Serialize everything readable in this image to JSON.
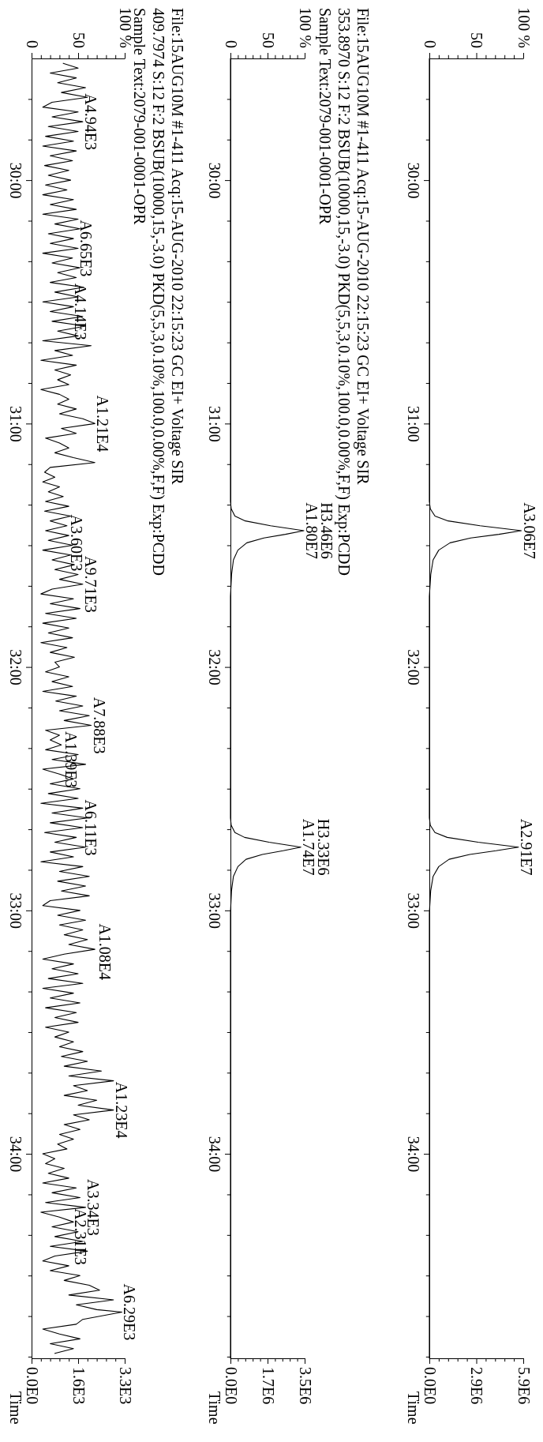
{
  "chart_data": [
    {
      "type": "line",
      "ylabel": "Time",
      "values": [
        29.5,
        31.32,
        31.35,
        31.38,
        31.4,
        31.42,
        31.44,
        31.455,
        31.47,
        31.49,
        31.52,
        31.56,
        31.62,
        31.71,
        32.62,
        32.65,
        32.68,
        32.7,
        32.72,
        32.74,
        32.755,
        32.77,
        32.79,
        32.82,
        32.86,
        32.92,
        33.01,
        34.84
      ],
      "x": [
        0,
        0,
        1,
        6,
        20,
        54,
        98,
        74,
        44,
        22,
        10,
        4,
        1.5,
        0,
        0,
        1,
        6,
        19,
        52,
        95,
        71,
        43,
        21,
        10,
        4,
        1.4,
        0,
        0
      ],
      "color": "#000000",
      "annotations": [
        {
          "text": "A3.06E7",
          "x": 98,
          "y": 31.44
        },
        {
          "text": "A2.91E7",
          "x": 95,
          "y": 32.74
        }
      ],
      "ylim": [
        34.84,
        29.5
      ],
      "yticks": [
        {
          "value": 29.6667,
          "label": null
        },
        {
          "value": 29.8333,
          "label": null
        },
        {
          "value": 30,
          "label": "30:00"
        },
        {
          "value": 30.1667,
          "label": null
        },
        {
          "value": 30.3333,
          "label": null
        },
        {
          "value": 30.5,
          "label": null
        },
        {
          "value": 30.6667,
          "label": null
        },
        {
          "value": 30.8333,
          "label": null
        },
        {
          "value": 31,
          "label": "31:00"
        },
        {
          "value": 31.1667,
          "label": null
        },
        {
          "value": 31.3333,
          "label": null
        },
        {
          "value": 31.5,
          "label": null
        },
        {
          "value": 31.6667,
          "label": null
        },
        {
          "value": 31.8333,
          "label": null
        },
        {
          "value": 32,
          "label": "32:00"
        },
        {
          "value": 32.1667,
          "label": null
        },
        {
          "value": 32.3333,
          "label": null
        },
        {
          "value": 32.5,
          "label": null
        },
        {
          "value": 32.6667,
          "label": null
        },
        {
          "value": 32.8333,
          "label": null
        },
        {
          "value": 33,
          "label": "33:00"
        },
        {
          "value": 33.1667,
          "label": null
        },
        {
          "value": 33.3333,
          "label": null
        },
        {
          "value": 33.5,
          "label": null
        },
        {
          "value": 33.6667,
          "label": null
        },
        {
          "value": 33.8333,
          "label": null
        },
        {
          "value": 34,
          "label": "34:00"
        },
        {
          "value": 34.1667,
          "label": null
        },
        {
          "value": 34.3333,
          "label": null
        },
        {
          "value": 34.5,
          "label": null
        },
        {
          "value": 34.6667,
          "label": null
        },
        {
          "value": 34.8333,
          "label": null
        }
      ],
      "xlim": [
        0,
        100
      ],
      "xticks": [
        {
          "value": 0,
          "label": "0"
        },
        {
          "value": 10,
          "label": null
        },
        {
          "value": 20,
          "label": null
        },
        {
          "value": 30,
          "label": null
        },
        {
          "value": 40,
          "label": null
        },
        {
          "value": 50,
          "label": "50"
        },
        {
          "value": 60,
          "label": null
        },
        {
          "value": 70,
          "label": null
        },
        {
          "value": 80,
          "label": null
        },
        {
          "value": 90,
          "label": null
        },
        {
          "value": 100,
          "label": "100 %"
        }
      ],
      "x2lim": [
        0,
        5900000
      ],
      "x2ticks": [
        {
          "value": 0,
          "label": "0.0E0"
        },
        {
          "value": 590000,
          "label": null
        },
        {
          "value": 1180000,
          "label": null
        },
        {
          "value": 1770000,
          "label": null
        },
        {
          "value": 2360000,
          "label": null
        },
        {
          "value": 2950000,
          "label": "2.9E6"
        },
        {
          "value": 3540000,
          "label": null
        },
        {
          "value": 4130000,
          "label": null
        },
        {
          "value": 4720000,
          "label": null
        },
        {
          "value": 5310000,
          "label": null
        },
        {
          "value": 5900000,
          "label": "5.9E6"
        }
      ]
    },
    {
      "type": "line",
      "ylabel": "Time",
      "values": [
        29.5,
        31.32,
        31.35,
        31.38,
        31.4,
        31.42,
        31.44,
        31.455,
        31.47,
        31.49,
        31.52,
        31.56,
        31.62,
        31.71,
        32.62,
        32.65,
        32.68,
        32.7,
        32.72,
        32.74,
        32.755,
        32.77,
        32.79,
        32.82,
        32.86,
        32.92,
        33.01,
        34.84
      ],
      "x": [
        0,
        0,
        1,
        6,
        20,
        54,
        99,
        74,
        45,
        22,
        10,
        4,
        1.5,
        0,
        0,
        1,
        6,
        19,
        52,
        95,
        71,
        43,
        21,
        10,
        4,
        1.4,
        0,
        0
      ],
      "color": "#000000",
      "annotations": [
        "File:15AUG10M #1-411 Acq:15-AUG-2010 22:15:23 GC EI+ Voltage SIR",
        "353.8970 S:12 F:2 BSUB(10000,15,-3.0) PKD(5,5,3,0.10%,100.0,0.00%,F,F)  Exp:PCDD",
        "Sample Text:2079-001-0001-OPR",
        {
          "text": "H3.46E6",
          "x": 99,
          "y": 31.44
        },
        {
          "text": "A1.80E7",
          "x": 99,
          "y": 31.44
        },
        {
          "text": "H3.33E6",
          "x": 95,
          "y": 32.74
        },
        {
          "text": "A1.74E7",
          "x": 95,
          "y": 32.74
        }
      ],
      "ylim": [
        34.84,
        29.5
      ],
      "yticks": [
        {
          "value": 29.6667,
          "label": null
        },
        {
          "value": 29.8333,
          "label": null
        },
        {
          "value": 30,
          "label": "30:00"
        },
        {
          "value": 30.1667,
          "label": null
        },
        {
          "value": 30.3333,
          "label": null
        },
        {
          "value": 30.5,
          "label": null
        },
        {
          "value": 30.6667,
          "label": null
        },
        {
          "value": 30.8333,
          "label": null
        },
        {
          "value": 31,
          "label": "31:00"
        },
        {
          "value": 31.1667,
          "label": null
        },
        {
          "value": 31.3333,
          "label": null
        },
        {
          "value": 31.5,
          "label": null
        },
        {
          "value": 31.6667,
          "label": null
        },
        {
          "value": 31.8333,
          "label": null
        },
        {
          "value": 32,
          "label": "32:00"
        },
        {
          "value": 32.1667,
          "label": null
        },
        {
          "value": 32.3333,
          "label": null
        },
        {
          "value": 32.5,
          "label": null
        },
        {
          "value": 32.6667,
          "label": null
        },
        {
          "value": 32.8333,
          "label": null
        },
        {
          "value": 33,
          "label": "33:00"
        },
        {
          "value": 33.1667,
          "label": null
        },
        {
          "value": 33.3333,
          "label": null
        },
        {
          "value": 33.5,
          "label": null
        },
        {
          "value": 33.6667,
          "label": null
        },
        {
          "value": 33.8333,
          "label": null
        },
        {
          "value": 34,
          "label": "34:00"
        },
        {
          "value": 34.1667,
          "label": null
        },
        {
          "value": 34.3333,
          "label": null
        },
        {
          "value": 34.5,
          "label": null
        },
        {
          "value": 34.6667,
          "label": null
        },
        {
          "value": 34.8333,
          "label": null
        }
      ],
      "xlim": [
        0,
        100
      ],
      "xticks": [
        {
          "value": 0,
          "label": "0"
        },
        {
          "value": 10,
          "label": null
        },
        {
          "value": 20,
          "label": null
        },
        {
          "value": 30,
          "label": null
        },
        {
          "value": 40,
          "label": null
        },
        {
          "value": 50,
          "label": "50"
        },
        {
          "value": 60,
          "label": null
        },
        {
          "value": 70,
          "label": null
        },
        {
          "value": 80,
          "label": null
        },
        {
          "value": 90,
          "label": null
        },
        {
          "value": 100,
          "label": "100 %"
        }
      ],
      "x2lim": [
        0,
        3500000
      ],
      "x2ticks": [
        {
          "value": 0,
          "label": "0.0E0"
        },
        {
          "value": 350000,
          "label": null
        },
        {
          "value": 700000,
          "label": null
        },
        {
          "value": 1050000,
          "label": null
        },
        {
          "value": 1400000,
          "label": null
        },
        {
          "value": 1750000,
          "label": "1.7E6"
        },
        {
          "value": 2100000,
          "label": null
        },
        {
          "value": 2450000,
          "label": null
        },
        {
          "value": 2800000,
          "label": null
        },
        {
          "value": 3150000,
          "label": null
        },
        {
          "value": 3500000,
          "label": "3.5E6"
        }
      ]
    },
    {
      "type": "line",
      "ylabel": "Time",
      "values": [
        29.52,
        29.54,
        29.56,
        29.58,
        29.6,
        29.62,
        29.64,
        29.66,
        29.68,
        29.7,
        29.72,
        29.74,
        29.76,
        29.78,
        29.8,
        29.82,
        29.84,
        29.86,
        29.88,
        29.9,
        29.92,
        29.94,
        29.96,
        29.98,
        30,
        30.02,
        30.04,
        30.06,
        30.08,
        30.1,
        30.12,
        30.14,
        30.16,
        30.18,
        30.2,
        30.22,
        30.24,
        30.26,
        30.28,
        30.3,
        30.32,
        30.34,
        30.36,
        30.38,
        30.4,
        30.42,
        30.44,
        30.46,
        30.48,
        30.5,
        30.52,
        30.54,
        30.56,
        30.58,
        30.6,
        30.62,
        30.64,
        30.66,
        30.68,
        30.7,
        30.72,
        30.74,
        30.76,
        30.78,
        30.8,
        30.82,
        30.84,
        30.86,
        30.88,
        30.9,
        30.92,
        30.94,
        30.96,
        30.98,
        31,
        31.02,
        31.04,
        31.06,
        31.08,
        31.1,
        31.12,
        31.14,
        31.16,
        31.18,
        31.2,
        31.22,
        31.24,
        31.26,
        31.28,
        31.3,
        31.32,
        31.34,
        31.36,
        31.38,
        31.4,
        31.42,
        31.44,
        31.46,
        31.48,
        31.5,
        31.52,
        31.54,
        31.56,
        31.58,
        31.6,
        31.62,
        31.64,
        31.66,
        31.68,
        31.7,
        31.72,
        31.74,
        31.76,
        31.78,
        31.8,
        31.82,
        31.84,
        31.86,
        31.88,
        31.9,
        31.92,
        31.94,
        31.96,
        31.98,
        32,
        32.02,
        32.04,
        32.06,
        32.08,
        32.1,
        32.12,
        32.14,
        32.16,
        32.18,
        32.2,
        32.22,
        32.24,
        32.26,
        32.28,
        32.3,
        32.32,
        32.34,
        32.36,
        32.38,
        32.4,
        32.42,
        32.44,
        32.46,
        32.48,
        32.5,
        32.52,
        32.54,
        32.56,
        32.58,
        32.6,
        32.62,
        32.64,
        32.66,
        32.68,
        32.7,
        32.72,
        32.74,
        32.76,
        32.78,
        32.8,
        32.82,
        32.84,
        32.86,
        32.88,
        32.9,
        32.92,
        32.94,
        32.96,
        32.98,
        33,
        33.02,
        33.04,
        33.06,
        33.08,
        33.1,
        33.12,
        33.14,
        33.16,
        33.18,
        33.2,
        33.22,
        33.24,
        33.26,
        33.28,
        33.3,
        33.32,
        33.34,
        33.36,
        33.38,
        33.4,
        33.42,
        33.44,
        33.46,
        33.48,
        33.5,
        33.52,
        33.54,
        33.56,
        33.58,
        33.6,
        33.62,
        33.64,
        33.66,
        33.68,
        33.7,
        33.72,
        33.74,
        33.76,
        33.78,
        33.8,
        33.82,
        33.84,
        33.86,
        33.88,
        33.9,
        33.92,
        33.94,
        33.96,
        33.98,
        34,
        34.02,
        34.04,
        34.06,
        34.08,
        34.1,
        34.12,
        34.14,
        34.16,
        34.18,
        34.2,
        34.22,
        34.24,
        34.26,
        34.28,
        34.3,
        34.32,
        34.34,
        34.36,
        34.38,
        34.4,
        34.42,
        34.44,
        34.46,
        34.48,
        34.5,
        34.52,
        34.54,
        34.56,
        34.58,
        34.6,
        34.62,
        34.64,
        34.65,
        34.68,
        34.7,
        34.72,
        34.74,
        34.76,
        34.78,
        34.8,
        34.82
      ],
      "x": [
        34,
        50,
        20,
        48,
        28,
        58,
        32,
        60,
        22,
        12,
        50,
        22,
        55,
        18,
        50,
        15,
        45,
        12,
        48,
        20,
        44,
        14,
        40,
        18,
        42,
        15,
        38,
        12,
        45,
        20,
        48,
        12,
        50,
        25,
        52,
        18,
        45,
        20,
        50,
        12,
        44,
        22,
        52,
        28,
        48,
        20,
        56,
        25,
        50,
        12,
        45,
        20,
        55,
        22,
        58,
        28,
        50,
        12,
        64,
        25,
        44,
        10,
        48,
        25,
        42,
        28,
        40,
        10,
        30,
        40,
        28,
        48,
        30,
        55,
        68,
        32,
        48,
        15,
        30,
        40,
        25,
        45,
        68,
        20,
        14,
        25,
        12,
        30,
        18,
        34,
        15,
        40,
        14,
        42,
        20,
        38,
        15,
        40,
        18,
        44,
        12,
        42,
        22,
        46,
        25,
        50,
        30,
        55,
        22,
        10,
        45,
        20,
        52,
        15,
        48,
        12,
        40,
        18,
        44,
        10,
        38,
        20,
        46,
        25,
        30,
        15,
        40,
        22,
        44,
        12,
        48,
        26,
        55,
        30,
        62,
        35,
        64,
        15,
        30,
        20,
        32,
        15,
        50,
        22,
        58,
        12,
        30,
        45,
        20,
        52,
        18,
        50,
        10,
        55,
        22,
        60,
        20,
        55,
        14,
        48,
        25,
        58,
        20,
        45,
        10,
        55,
        30,
        62,
        28,
        58,
        32,
        62,
        20,
        12,
        52,
        28,
        58,
        30,
        55,
        35,
        60,
        40,
        68,
        35,
        12,
        45,
        22,
        50,
        18,
        55,
        12,
        45,
        20,
        52,
        15,
        48,
        25,
        50,
        15,
        40,
        25,
        45,
        30,
        55,
        32,
        60,
        35,
        75,
        40,
        88,
        45,
        60,
        35,
        70,
        50,
        88,
        45,
        62,
        35,
        52,
        30,
        45,
        28,
        38,
        12,
        25,
        15,
        35,
        18,
        40,
        12,
        48,
        22,
        52,
        15,
        58,
        10,
        30,
        45,
        22,
        50,
        25,
        55,
        20,
        60,
        25,
        12,
        40,
        20,
        52,
        35,
        62,
        73,
        40,
        88,
        48,
        70,
        97,
        55,
        48,
        12,
        30,
        52,
        20,
        45,
        25
      ],
      "color": "#000000",
      "annotations": [
        "File:15AUG10M #1-411 Acq:15-AUG-2010 22:15:23 GC EI+ Voltage SIR",
        "409.7974 S:12 F:2 BSUB(10000,15,-3.0) PKD(5,5,3,0.10%,100.0,0.00%,F,F)  Exp:PCDD",
        "Sample Text:2079-001-0001-OPR",
        {
          "text": "A4.94E3",
          "x": 55,
          "y": 29.76
        },
        {
          "text": "A6.65E3",
          "x": 50,
          "y": 30.28
        },
        {
          "text": "A4.14E3",
          "x": 44,
          "y": 30.54
        },
        {
          "text": "A1.21E4",
          "x": 68,
          "y": 31
        },
        {
          "text": "A3.60E3",
          "x": 40,
          "y": 31.49
        },
        {
          "text": "A9.71E3",
          "x": 55,
          "y": 31.66
        },
        {
          "text": "A7.88E3",
          "x": 64,
          "y": 32.24
        },
        {
          "text": "A1.39E3",
          "x": 34,
          "y": 32.38
        },
        {
          "text": "A6.11E3",
          "x": 55,
          "y": 32.66
        },
        {
          "text": "A1.08E4",
          "x": 70,
          "y": 33.17
        },
        {
          "text": "A1.23E4",
          "x": 88,
          "y": 33.82
        },
        {
          "text": "A3.34E3",
          "x": 58,
          "y": 34.22
        },
        {
          "text": "A2.31E3",
          "x": 44,
          "y": 34.34
        },
        {
          "text": "A6.29E3",
          "x": 97,
          "y": 34.65
        }
      ],
      "ylim": [
        34.84,
        29.5
      ],
      "yticks": [
        {
          "value": 29.6667,
          "label": null
        },
        {
          "value": 29.8333,
          "label": null
        },
        {
          "value": 30,
          "label": "30:00"
        },
        {
          "value": 30.1667,
          "label": null
        },
        {
          "value": 30.3333,
          "label": null
        },
        {
          "value": 30.5,
          "label": null
        },
        {
          "value": 30.6667,
          "label": null
        },
        {
          "value": 30.8333,
          "label": null
        },
        {
          "value": 31,
          "label": "31:00"
        },
        {
          "value": 31.1667,
          "label": null
        },
        {
          "value": 31.3333,
          "label": null
        },
        {
          "value": 31.5,
          "label": null
        },
        {
          "value": 31.6667,
          "label": null
        },
        {
          "value": 31.8333,
          "label": null
        },
        {
          "value": 32,
          "label": "32:00"
        },
        {
          "value": 32.1667,
          "label": null
        },
        {
          "value": 32.3333,
          "label": null
        },
        {
          "value": 32.5,
          "label": null
        },
        {
          "value": 32.6667,
          "label": null
        },
        {
          "value": 32.8333,
          "label": null
        },
        {
          "value": 33,
          "label": "33:00"
        },
        {
          "value": 33.1667,
          "label": null
        },
        {
          "value": 33.3333,
          "label": null
        },
        {
          "value": 33.5,
          "label": null
        },
        {
          "value": 33.6667,
          "label": null
        },
        {
          "value": 33.8333,
          "label": null
        },
        {
          "value": 34,
          "label": "34:00"
        },
        {
          "value": 34.1667,
          "label": null
        },
        {
          "value": 34.3333,
          "label": null
        },
        {
          "value": 34.5,
          "label": null
        },
        {
          "value": 34.6667,
          "label": null
        },
        {
          "value": 34.8333,
          "label": null
        }
      ],
      "xlim": [
        0,
        100
      ],
      "xticks": [
        {
          "value": 0,
          "label": "0"
        },
        {
          "value": 10,
          "label": null
        },
        {
          "value": 20,
          "label": null
        },
        {
          "value": 30,
          "label": null
        },
        {
          "value": 40,
          "label": null
        },
        {
          "value": 50,
          "label": "50"
        },
        {
          "value": 60,
          "label": null
        },
        {
          "value": 70,
          "label": null
        },
        {
          "value": 80,
          "label": null
        },
        {
          "value": 90,
          "label": null
        },
        {
          "value": 100,
          "label": "100 %"
        }
      ],
      "x2lim": [
        0,
        3300
      ],
      "x2ticks": [
        {
          "value": 0,
          "label": "0.0E0"
        },
        {
          "value": 330,
          "label": null
        },
        {
          "value": 660,
          "label": null
        },
        {
          "value": 990,
          "label": null
        },
        {
          "value": 1320,
          "label": null
        },
        {
          "value": 1650,
          "label": "1.6E3"
        },
        {
          "value": 1980,
          "label": null
        },
        {
          "value": 2310,
          "label": null
        },
        {
          "value": 2640,
          "label": null
        },
        {
          "value": 2970,
          "label": null
        },
        {
          "value": 3300,
          "label": "3.3E3"
        }
      ]
    }
  ]
}
